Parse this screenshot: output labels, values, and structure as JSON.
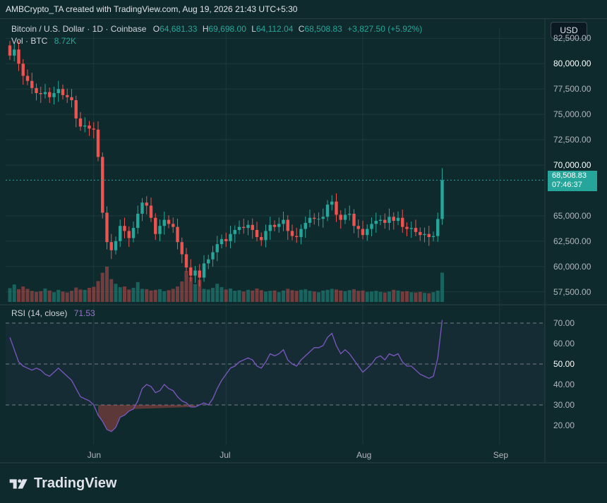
{
  "attribution": "AMBCrypto_TA created with TradingView.com, Aug 19, 2026 21:43 UTC+5:30",
  "legend": {
    "symbol": "Bitcoin / U.S. Dollar · 1D · Coinbase",
    "o_label": "O",
    "o_value": "64,681.33",
    "h_label": "H",
    "h_value": "69,698.00",
    "l_label": "L",
    "l_value": "64,112.04",
    "c_label": "C",
    "c_value": "68,508.83",
    "change": "+3,827.50 (+5.92%)",
    "vol_label": "Vol · BTC",
    "vol_value": "8.72K",
    "rsi_label": "RSI (14, close)",
    "rsi_value": "71.53"
  },
  "currency_button": "USD",
  "last_price": {
    "price": "68,508.83",
    "countdown": "07:46:37"
  },
  "price_axis": [
    "82,500.00",
    "80,000.00",
    "77,500.00",
    "75,000.00",
    "72,500.00",
    "70,000.00",
    "65,000.00",
    "62,500.00",
    "60,000.00",
    "57,500.00"
  ],
  "rsi_axis": [
    "70.00",
    "60.00",
    "50.00",
    "40.00",
    "30.00",
    "20.00"
  ],
  "time_axis": [
    "Jun",
    "Jul",
    "Aug",
    "Sep"
  ],
  "brand": "TradingView",
  "colors": {
    "up": "#26a69a",
    "down": "#ef5350",
    "rsi": "#7e57c2",
    "background": "#0f2a2c"
  },
  "chart_data": [
    {
      "type": "candlestick",
      "title": "Bitcoin / U.S. Dollar · 1D · Coinbase",
      "ylim": [
        56500,
        83500
      ],
      "x": [
        "May 13",
        "May 14",
        "May 15",
        "May 16",
        "May 17",
        "May 18",
        "May 19",
        "May 20",
        "May 21",
        "May 22",
        "May 23",
        "May 24",
        "May 25",
        "May 26",
        "May 27",
        "May 28",
        "May 29",
        "May 30",
        "May 31",
        "Jun 1",
        "Jun 2",
        "Jun 3",
        "Jun 4",
        "Jun 5",
        "Jun 6",
        "Jun 7",
        "Jun 8",
        "Jun 9",
        "Jun 10",
        "Jun 11",
        "Jun 12",
        "Jun 13",
        "Jun 14",
        "Jun 15",
        "Jun 16",
        "Jun 17",
        "Jun 18",
        "Jun 19",
        "Jun 20",
        "Jun 21",
        "Jun 22",
        "Jun 23",
        "Jun 24",
        "Jun 25",
        "Jun 26",
        "Jun 27",
        "Jun 28",
        "Jun 29",
        "Jun 30",
        "Jul 1",
        "Jul 2",
        "Jul 3",
        "Jul 4",
        "Jul 5",
        "Jul 6",
        "Jul 7",
        "Jul 8",
        "Jul 9",
        "Jul 10",
        "Jul 11",
        "Jul 12",
        "Jul 13",
        "Jul 14",
        "Jul 15",
        "Jul 16",
        "Jul 17",
        "Jul 18",
        "Jul 19",
        "Jul 20",
        "Jul 21",
        "Jul 22",
        "Jul 23",
        "Jul 24",
        "Jul 25",
        "Jul 26",
        "Jul 27",
        "Jul 28",
        "Jul 29",
        "Jul 30",
        "Jul 31",
        "Aug 1",
        "Aug 2",
        "Aug 3",
        "Aug 4",
        "Aug 5",
        "Aug 6",
        "Aug 7",
        "Aug 8",
        "Aug 9",
        "Aug 10",
        "Aug 11",
        "Aug 12",
        "Aug 13",
        "Aug 14",
        "Aug 15",
        "Aug 16",
        "Aug 17",
        "Aug 18",
        "Aug 19"
      ],
      "close": [
        80800,
        81400,
        80000,
        78800,
        78300,
        77600,
        77100,
        77000,
        77200,
        76700,
        77100,
        77500,
        76900,
        76700,
        76400,
        74600,
        73800,
        73900,
        73600,
        73500,
        70800,
        65300,
        62400,
        61600,
        62500,
        64000,
        63500,
        62800,
        63800,
        65200,
        66300,
        66000,
        64800,
        63200,
        64000,
        64600,
        64200,
        63900,
        62400,
        61200,
        59900,
        59100,
        59600,
        58900,
        60300,
        60700,
        61400,
        62200,
        62700,
        62500,
        63200,
        63600,
        63900,
        63800,
        64100,
        63600,
        62900,
        62600,
        63500,
        64100,
        63900,
        64200,
        64600,
        63500,
        63000,
        62900,
        63700,
        64300,
        64800,
        64700,
        64700,
        64900,
        66100,
        66400,
        65100,
        64600,
        65100,
        65200,
        64000,
        63700,
        63100,
        63700,
        64200,
        64500,
        64600,
        64300,
        64900,
        64500,
        64800,
        63900,
        63700,
        63800,
        63400,
        63100,
        63200,
        62900,
        63000,
        64681,
        68509
      ],
      "rsi": [
        63,
        57,
        51,
        49,
        48,
        47,
        48,
        47,
        45,
        44,
        46,
        48,
        46,
        44,
        42,
        38,
        34,
        33,
        32,
        30,
        25,
        22,
        18,
        17,
        19,
        24,
        25,
        27,
        28,
        32,
        38,
        40,
        39,
        36,
        37,
        40,
        38,
        37,
        34,
        32,
        31,
        29,
        29,
        30,
        31,
        30,
        33,
        38,
        42,
        45,
        48,
        49,
        51,
        52,
        53,
        52,
        49,
        48,
        51,
        55,
        54,
        55,
        57,
        52,
        50,
        49,
        52,
        54,
        56,
        58,
        58,
        59,
        63,
        65,
        59,
        55,
        57,
        55,
        52,
        49,
        46,
        48,
        50,
        53,
        54,
        52,
        55,
        54,
        55,
        51,
        49,
        49,
        47,
        45,
        44,
        43,
        44,
        53,
        71.53
      ],
      "volume": [
        4.1,
        5.2,
        3.8,
        4.6,
        3.9,
        3.3,
        3.0,
        3.2,
        4.0,
        3.4,
        2.9,
        3.6,
        3.1,
        2.8,
        3.3,
        4.3,
        3.7,
        3.6,
        4.2,
        4.5,
        6.2,
        8.7,
        10.5,
        6.8,
        5.4,
        4.4,
        4.6,
        3.7,
        4.2,
        5.9,
        3.9,
        3.8,
        3.4,
        3.6,
        3.8,
        3.2,
        3.5,
        3.9,
        4.6,
        6.1,
        9.2,
        7.4,
        5.3,
        6.6,
        3.9,
        3.7,
        4.2,
        5.4,
        4.4,
        3.7,
        4.0,
        3.3,
        3.5,
        3.1,
        3.6,
        3.4,
        4.0,
        3.5,
        3.1,
        3.3,
        3.4,
        2.9,
        3.4,
        3.9,
        3.5,
        3.3,
        3.6,
        3.8,
        3.3,
        3.1,
        2.9,
        3.4,
        3.6,
        3.9,
        3.7,
        3.4,
        3.2,
        3.5,
        3.8,
        3.3,
        3.4,
        3.0,
        3.1,
        3.3,
        3.0,
        2.8,
        3.1,
        3.6,
        3.4,
        3.1,
        3.2,
        2.9,
        2.8,
        3.0,
        2.7,
        2.6,
        2.9,
        3.4,
        8.72
      ],
      "price_scale": "linear",
      "grid": true
    }
  ]
}
